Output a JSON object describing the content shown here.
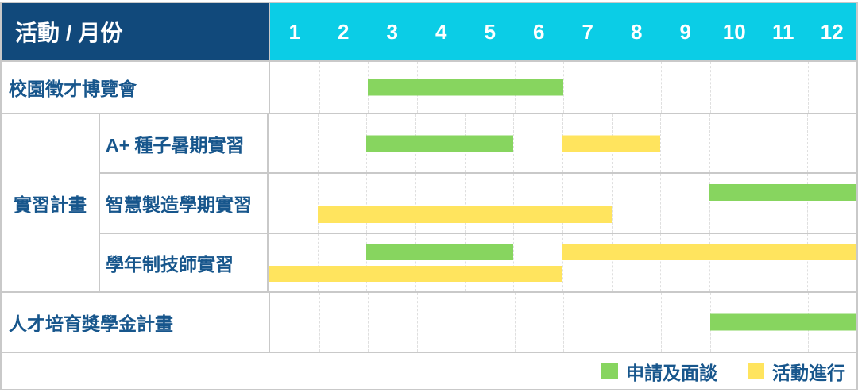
{
  "header": {
    "title": "活動 / 月份"
  },
  "months": [
    "1",
    "2",
    "3",
    "4",
    "5",
    "6",
    "7",
    "8",
    "9",
    "10",
    "11",
    "12"
  ],
  "colors": {
    "header_bg": "#11497B",
    "months_bg": "#0BCDE6",
    "label_text": "#17568C",
    "green": "#87D55F",
    "yellow": "#FFE45E",
    "grid_line": "#DFDFDF",
    "border": "#C9C9C9"
  },
  "legend": [
    {
      "label": "申請及面談",
      "color": "green"
    },
    {
      "label": "活動進行",
      "color": "yellow"
    }
  ],
  "chart_data": {
    "type": "gantt",
    "title": "活動 / 月份",
    "x_unit": "month",
    "x_ticks": [
      1,
      2,
      3,
      4,
      5,
      6,
      7,
      8,
      9,
      10,
      11,
      12
    ],
    "group_label": "實習計畫",
    "legend": {
      "green": "申請及面談",
      "yellow": "活動進行"
    },
    "rows": [
      {
        "label": "校園徵才博覽會",
        "group": "",
        "bars": [
          {
            "color": "green",
            "status": "申請及面談",
            "start_month": 3,
            "end_month": 6,
            "line": 0
          }
        ]
      },
      {
        "label": "A+ 種子暑期實習",
        "group": "實習計畫",
        "bars": [
          {
            "color": "green",
            "status": "申請及面談",
            "start_month": 3,
            "end_month": 5,
            "line": 0
          },
          {
            "color": "yellow",
            "status": "活動進行",
            "start_month": 7,
            "end_month": 8,
            "line": 0
          }
        ]
      },
      {
        "label": "智慧製造學期實習",
        "group": "實習計畫",
        "bars": [
          {
            "color": "green",
            "status": "申請及面談",
            "start_month": 10,
            "end_month": 12,
            "line": 0
          },
          {
            "color": "yellow",
            "status": "活動進行",
            "start_month": 2,
            "end_month": 7,
            "line": 1
          }
        ]
      },
      {
        "label": "學年制技師實習",
        "group": "實習計畫",
        "bars": [
          {
            "color": "green",
            "status": "申請及面談",
            "start_month": 3,
            "end_month": 5,
            "line": 0
          },
          {
            "color": "yellow",
            "status": "活動進行",
            "start_month": 7,
            "end_month": 12,
            "line": 0
          },
          {
            "color": "yellow",
            "status": "活動進行",
            "start_month": 1,
            "end_month": 6,
            "line": 1
          }
        ]
      },
      {
        "label": "人才培育獎學金計畫",
        "group": "",
        "bars": [
          {
            "color": "green",
            "status": "申請及面談",
            "start_month": 10,
            "end_month": 12,
            "line": 0
          }
        ]
      }
    ]
  }
}
